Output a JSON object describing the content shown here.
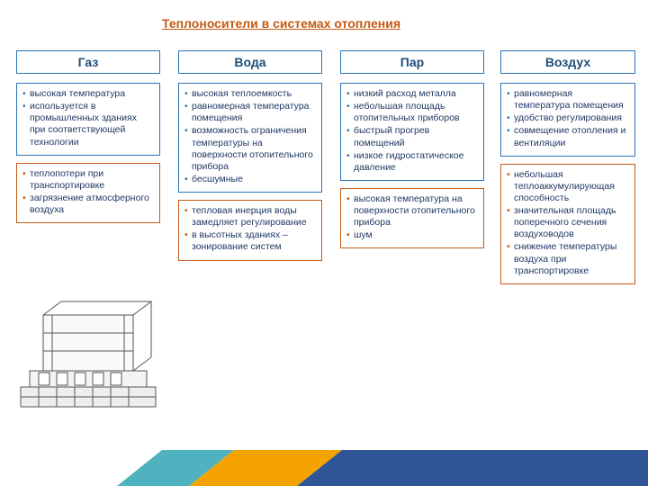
{
  "title": {
    "text": "Теплоносители в системах отопления",
    "color": "#c55a11"
  },
  "colors": {
    "header_border": "#2e75b6",
    "header_text": "#1f4e79",
    "pro_border": "#2e75b6",
    "pro_bullet": "#2e75b6",
    "con_border": "#c55a11",
    "con_bullet": "#c55a11",
    "text": "#1f3864"
  },
  "columns": [
    {
      "header": "Газ",
      "pros": [
        "высокая температура",
        "используется в промышленных зданиях при соответствующей технологии"
      ],
      "cons": [
        "теплопотери при транспортировке",
        "загрязнение атмосферного воздуха"
      ]
    },
    {
      "header": "Вода",
      "pros": [
        "высокая теплоемкость",
        "равномерная температура помещения",
        "возможность ограничения температуры на поверхности отопительного прибора",
        "бесшумные"
      ],
      "cons": [
        "тепловая инерция воды замедляет регулирование",
        "в высотных зданиях – зонирование систем"
      ]
    },
    {
      "header": "Пар",
      "pros": [
        "низкий расход металла",
        "небольшая площадь отопительных приборов",
        "быстрый прогрев помещений",
        "низкое гидростатическое давление"
      ],
      "cons": [
        "высокая температура на поверхности отопительного прибора",
        "шум"
      ]
    },
    {
      "header": "Воздух",
      "pros": [
        "равномерная температура помещения",
        "удобство регулирования",
        "совмещение отопления и вентиляции"
      ],
      "cons": [
        "небольшая теплоаккумулирующая способность",
        "значительная площадь поперечного сечения воздуховодов",
        "снижение температуры воздуха при транспортировке"
      ]
    }
  ],
  "deco": {
    "teal": "#4fb3bf",
    "orange": "#f4a300",
    "navy": "#2f5597"
  }
}
